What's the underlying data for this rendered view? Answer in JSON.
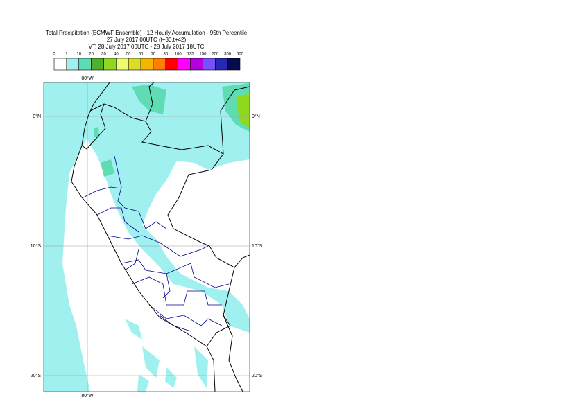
{
  "header": {
    "title": "Total Precipitation (ECMWF Ensemble) - 12 Hourly Accumulation - 95th Percentile",
    "run": "27 July 2017 00UTC (t+30,t+42)",
    "valid": "VT: 28 July 2017 06UTC - 28 July 2017 18UTC"
  },
  "legend": {
    "labels": [
      "0",
      "1",
      "10",
      "20",
      "30",
      "40",
      "50",
      "60",
      "70",
      "80",
      "100",
      "125",
      "150",
      "200",
      "300",
      "500"
    ],
    "colors": [
      "#ffffff",
      "#a0f0f0",
      "#5fdcb4",
      "#4fb02e",
      "#8fd81e",
      "#e8ff70",
      "#dcdc28",
      "#f5b400",
      "#ff7f00",
      "#ff0000",
      "#ff00ff",
      "#b400dc",
      "#7850ff",
      "#2828b4",
      "#0a0a50"
    ]
  },
  "map": {
    "lon_labels": [
      "80°W"
    ],
    "lat_labels": [
      "0°N",
      "10°S",
      "20°S"
    ]
  }
}
